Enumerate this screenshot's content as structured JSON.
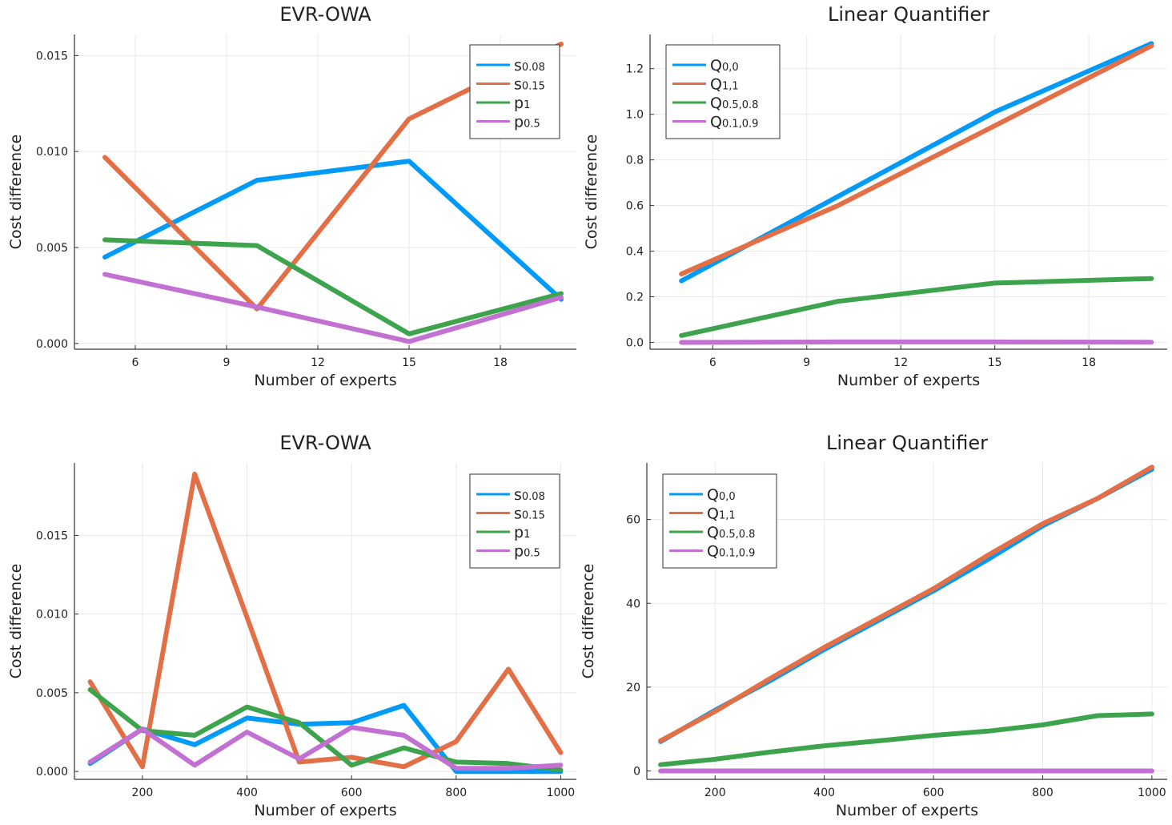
{
  "chart_data": [
    {
      "type": "line",
      "title": "EVR-OWA",
      "xlabel": "Number of experts",
      "ylabel": "Cost difference",
      "xlim": [
        4,
        20.5
      ],
      "ylim": [
        -0.0003,
        0.0161
      ],
      "xticks": [
        6,
        9,
        12,
        15,
        18
      ],
      "xtick_labels": [
        "6",
        "9",
        "12",
        "15",
        "18"
      ],
      "yticks": [
        0,
        0.005,
        0.01,
        0.015
      ],
      "ytick_labels": [
        "0.000",
        "0.005",
        "0.010",
        "0.015"
      ],
      "grid": true,
      "legend": "top-right",
      "x": [
        5,
        10,
        15,
        20
      ],
      "series": [
        {
          "name": "s",
          "sub": "0.08",
          "color": "#009af9",
          "values": [
            0.0045,
            0.0085,
            0.0095,
            0.0023
          ]
        },
        {
          "name": "s",
          "sub": "0.15",
          "color": "#e26f46",
          "values": [
            0.0097,
            0.0018,
            0.0117,
            0.0156
          ]
        },
        {
          "name": "p",
          "sub": "1",
          "color": "#3da44d",
          "values": [
            0.0054,
            0.0051,
            0.0005,
            0.0026
          ]
        },
        {
          "name": "p",
          "sub": "0.5",
          "color": "#c271d2",
          "values": [
            0.0036,
            0.0019,
            0.0001,
            0.0024
          ]
        }
      ]
    },
    {
      "type": "line",
      "title": "Linear Quantifier",
      "xlabel": "Number of experts",
      "ylabel": "Cost difference",
      "xlim": [
        4,
        20.5
      ],
      "ylim": [
        -0.03,
        1.35
      ],
      "xticks": [
        6,
        9,
        12,
        15,
        18
      ],
      "xtick_labels": [
        "6",
        "9",
        "12",
        "15",
        "18"
      ],
      "yticks": [
        0,
        0.2,
        0.4,
        0.6,
        0.8,
        1.0,
        1.2
      ],
      "ytick_labels": [
        "0.0",
        "0.2",
        "0.4",
        "0.6",
        "0.8",
        "1.0",
        "1.2"
      ],
      "grid": true,
      "legend": "top-left",
      "x": [
        5,
        10,
        15,
        20
      ],
      "series": [
        {
          "name": "Q",
          "sub": "0,0",
          "color": "#009af9",
          "values": [
            0.27,
            0.64,
            1.01,
            1.31
          ]
        },
        {
          "name": "Q",
          "sub": "1,1",
          "color": "#e26f46",
          "values": [
            0.3,
            0.6,
            0.95,
            1.3
          ]
        },
        {
          "name": "Q",
          "sub": "0.5,0.8",
          "color": "#3da44d",
          "values": [
            0.03,
            0.18,
            0.26,
            0.28
          ]
        },
        {
          "name": "Q",
          "sub": "0.1,0.9",
          "color": "#c271d2",
          "values": [
            0.0,
            0.002,
            0.002,
            0.001
          ]
        }
      ]
    },
    {
      "type": "line",
      "title": "EVR-OWA",
      "xlabel": "Number of experts",
      "ylabel": "Cost difference",
      "xlim": [
        70,
        1030
      ],
      "ylim": [
        -0.0005,
        0.0196
      ],
      "xticks": [
        200,
        400,
        600,
        800,
        1000
      ],
      "xtick_labels": [
        "200",
        "400",
        "600",
        "800",
        "1000"
      ],
      "yticks": [
        0,
        0.005,
        0.01,
        0.015
      ],
      "ytick_labels": [
        "0.000",
        "0.005",
        "0.010",
        "0.015"
      ],
      "grid": true,
      "legend": "top-right",
      "x": [
        100,
        200,
        300,
        400,
        500,
        600,
        700,
        800,
        900,
        1000
      ],
      "series": [
        {
          "name": "s",
          "sub": "0.08",
          "color": "#009af9",
          "values": [
            0.0005,
            0.0027,
            0.0017,
            0.0034,
            0.003,
            0.0031,
            0.0042,
            0.0,
            0.0,
            0.0
          ]
        },
        {
          "name": "s",
          "sub": "0.15",
          "color": "#e26f46",
          "values": [
            0.0057,
            0.0003,
            0.0189,
            0.0098,
            0.0006,
            0.0009,
            0.0003,
            0.0019,
            0.0065,
            0.0012
          ]
        },
        {
          "name": "p",
          "sub": "1",
          "color": "#3da44d",
          "values": [
            0.0052,
            0.0026,
            0.0023,
            0.0041,
            0.0031,
            0.0004,
            0.0015,
            0.0006,
            0.0005,
            0.0001
          ]
        },
        {
          "name": "p",
          "sub": "0.5",
          "color": "#c271d2",
          "values": [
            0.0006,
            0.0027,
            0.0004,
            0.0025,
            0.0008,
            0.0028,
            0.0023,
            0.0002,
            0.0002,
            0.0004
          ]
        }
      ]
    },
    {
      "type": "line",
      "title": "Linear Quantifier",
      "xlabel": "Number of experts",
      "ylabel": "Cost difference",
      "xlim": [
        75,
        1028
      ],
      "ylim": [
        -2,
        73.5
      ],
      "xticks": [
        200,
        400,
        600,
        800,
        1000
      ],
      "xtick_labels": [
        "200",
        "400",
        "600",
        "800",
        "1000"
      ],
      "yticks": [
        0,
        20,
        40,
        60
      ],
      "ytick_labels": [
        "0",
        "20",
        "40",
        "60"
      ],
      "grid": true,
      "legend": "top-left",
      "x": [
        100,
        200,
        300,
        400,
        500,
        600,
        700,
        800,
        900,
        1000
      ],
      "series": [
        {
          "name": "Q",
          "sub": "0,0",
          "color": "#009af9",
          "values": [
            7.0,
            14.5,
            21.5,
            29.0,
            36.0,
            43.0,
            50.5,
            58.5,
            65.0,
            72.0
          ]
        },
        {
          "name": "Q",
          "sub": "1,1",
          "color": "#e26f46",
          "values": [
            7.2,
            14.2,
            22.0,
            29.5,
            36.5,
            43.5,
            51.5,
            59.0,
            65.0,
            72.5
          ]
        },
        {
          "name": "Q",
          "sub": "0.5,0.8",
          "color": "#3da44d",
          "values": [
            1.5,
            2.8,
            4.5,
            6.0,
            7.2,
            8.5,
            9.5,
            11.0,
            13.2,
            13.6
          ]
        },
        {
          "name": "Q",
          "sub": "0.1,0.9",
          "color": "#c271d2",
          "values": [
            0.0,
            0.0,
            0.0,
            0.0,
            0.0,
            0.0,
            0.0,
            0.0,
            0.0,
            0.0
          ]
        }
      ]
    }
  ]
}
